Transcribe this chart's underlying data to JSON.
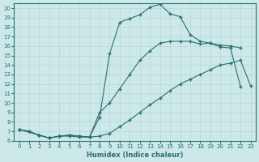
{
  "xlabel": "Humidex (Indice chaleur)",
  "xlim": [
    -0.5,
    23.5
  ],
  "ylim": [
    6,
    20.5
  ],
  "xticks": [
    0,
    1,
    2,
    3,
    4,
    5,
    6,
    7,
    8,
    9,
    10,
    11,
    12,
    13,
    14,
    15,
    16,
    17,
    18,
    19,
    20,
    21,
    22,
    23
  ],
  "yticks": [
    6,
    7,
    8,
    9,
    10,
    11,
    12,
    13,
    14,
    15,
    16,
    17,
    18,
    19,
    20
  ],
  "background_color": "#cce8e8",
  "line_color": "#2a7070",
  "grid_color": "#b8d8d8",
  "line1_x": [
    0,
    1,
    2,
    3,
    4,
    5,
    6,
    7,
    8,
    9,
    10,
    11,
    12,
    13,
    14,
    15,
    16,
    17,
    18,
    19,
    20,
    21,
    22,
    23
  ],
  "line1_y": [
    7.2,
    7.0,
    6.6,
    6.3,
    6.5,
    6.6,
    6.5,
    6.4,
    6.5,
    6.8,
    7.5,
    8.2,
    9.0,
    9.8,
    10.5,
    11.3,
    12.0,
    12.5,
    13.0,
    13.5,
    14.0,
    14.2,
    14.5,
    11.8
  ],
  "line2_x": [
    0,
    2,
    3,
    4,
    5,
    6,
    7,
    8,
    9,
    10,
    11,
    12,
    13,
    14,
    15,
    16,
    17,
    18,
    19,
    20,
    21,
    22
  ],
  "line2_y": [
    7.2,
    6.6,
    6.3,
    6.5,
    6.6,
    6.5,
    6.4,
    9.0,
    10.0,
    11.5,
    13.0,
    14.5,
    15.5,
    16.3,
    16.5,
    16.5,
    16.5,
    16.2,
    16.3,
    16.1,
    16.0,
    15.8
  ],
  "line3_x": [
    0,
    1,
    2,
    3,
    4,
    5,
    6,
    7,
    8,
    9,
    10,
    11,
    12,
    13,
    14,
    15,
    16,
    17,
    18,
    19,
    20,
    21,
    22
  ],
  "line3_y": [
    7.2,
    7.0,
    6.6,
    6.3,
    6.5,
    6.5,
    6.4,
    6.4,
    8.5,
    15.2,
    18.5,
    18.9,
    19.3,
    20.1,
    20.4,
    19.4,
    19.1,
    17.2,
    16.5,
    16.3,
    15.9,
    15.8,
    11.7
  ]
}
